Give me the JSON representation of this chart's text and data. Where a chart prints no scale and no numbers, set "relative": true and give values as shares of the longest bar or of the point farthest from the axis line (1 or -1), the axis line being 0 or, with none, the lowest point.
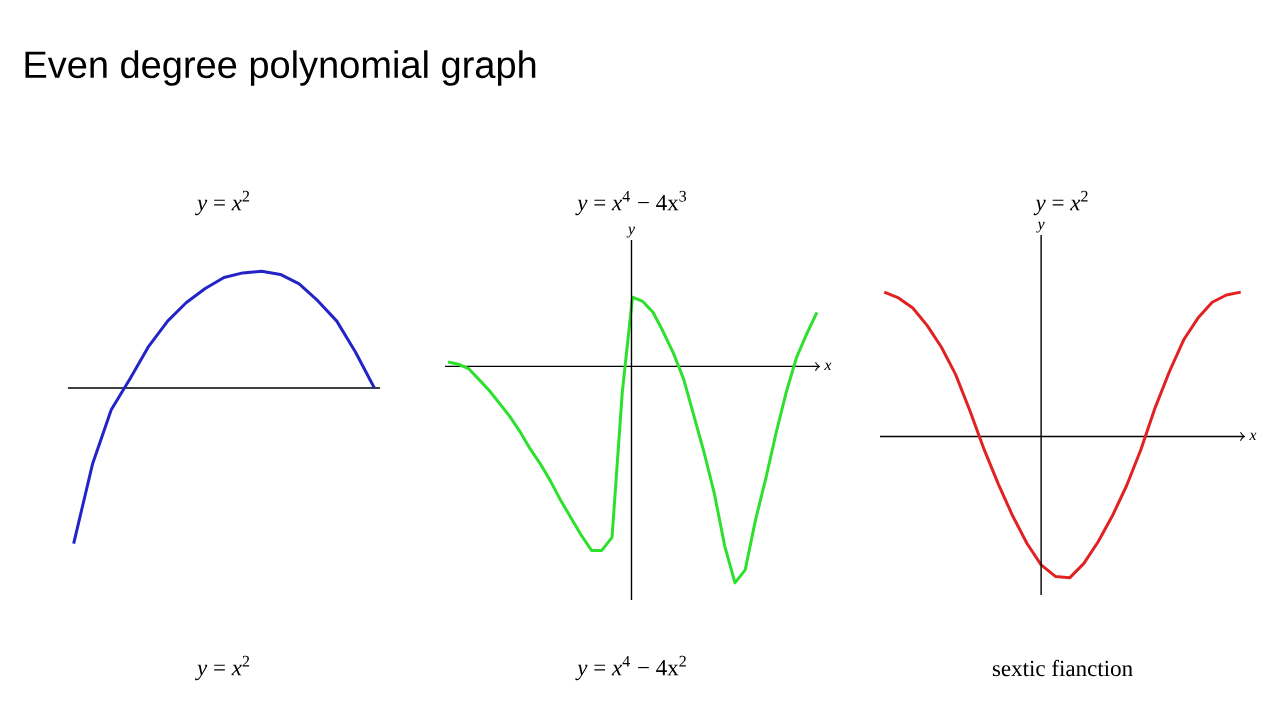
{
  "chart_data": [
    {
      "type": "line",
      "title": "Even degree polynomial graph",
      "subtitle": "*y* = *x*$^{2}$",
      "annotations": [
        "*y* = *x*$^{2}$"
      ],
      "relative": true,
      "categories": [
        null,
        null,
        null,
        null,
        null,
        null,
        null,
        null,
        null,
        null,
        null,
        null,
        null,
        null,
        null,
        null,
        null
      ],
      "series": [
        {
          "color": "#2323c8",
          "values": [
            -1,
            -0.49,
            -0.14,
            0.06,
            0.27,
            0.43,
            0.55,
            0.64,
            0.71,
            0.74,
            0.75,
            0.73,
            0.67,
            0.56,
            0.43,
            0.23,
            0
          ]
        }
      ]
    },
    {
      "type": "line",
      "title": "*y* = *x*$^{4}$ − 4x$^{3}$",
      "annotations": [
        "*y* = *x*$^{4}$ − 4x$^{2}$"
      ],
      "relative": true,
      "xlabel": "x",
      "ylabel": "y",
      "categories": [
        null,
        null,
        null,
        null,
        null,
        null,
        null,
        null,
        null,
        null,
        null,
        null,
        null,
        null,
        null,
        null,
        null,
        null,
        null,
        null,
        null,
        null,
        null,
        null,
        null,
        null,
        null,
        null,
        null,
        null,
        null,
        null,
        null,
        null,
        null,
        null,
        null
      ],
      "series": [
        {
          "color": "#2ee02e",
          "values": [
            0.02,
            0.01,
            -0.01,
            -0.06,
            -0.11,
            -0.17,
            -0.23,
            -0.3,
            -0.38,
            -0.45,
            -0.53,
            -0.62,
            -0.7,
            -0.78,
            -0.85,
            -0.85,
            -0.79,
            -0.12,
            0.32,
            0.3,
            0.25,
            0.16,
            0.06,
            -0.06,
            -0.23,
            -0.4,
            -0.59,
            -0.83,
            -1,
            -0.94,
            -0.71,
            -0.52,
            -0.31,
            -0.12,
            0.04,
            0.15,
            0.25
          ]
        }
      ]
    },
    {
      "type": "line",
      "title": "*y* = *x*$^{2}$",
      "annotations": [
        "sextic fianction"
      ],
      "relative": true,
      "xlabel": "x",
      "ylabel": "y",
      "categories": [
        null,
        null,
        null,
        null,
        null,
        null,
        null,
        null,
        null,
        null,
        null,
        null,
        null,
        null,
        null,
        null,
        null,
        null,
        null,
        null,
        null,
        null,
        null,
        null,
        null,
        null
      ],
      "series": [
        {
          "color": "#e02222",
          "values": [
            1,
            0.96,
            0.89,
            0.77,
            0.62,
            0.43,
            0.18,
            -0.09,
            -0.33,
            -0.55,
            -0.74,
            -0.89,
            -0.97,
            -0.98,
            -0.88,
            -0.73,
            -0.55,
            -0.34,
            -0.09,
            0.2,
            0.45,
            0.67,
            0.82,
            0.93,
            0.98,
            1
          ]
        }
      ]
    }
  ]
}
